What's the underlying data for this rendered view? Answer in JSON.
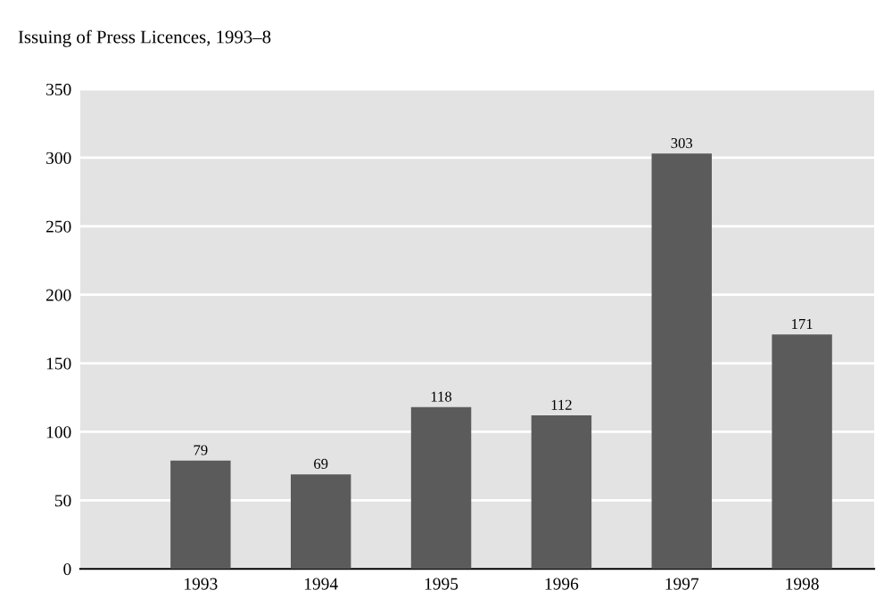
{
  "chart_data": {
    "type": "bar",
    "title": "Issuing of Press Licences, 1993–8",
    "categories": [
      "1993",
      "1994",
      "1995",
      "1996",
      "1997",
      "1998"
    ],
    "values": [
      79,
      69,
      118,
      112,
      303,
      171
    ],
    "color": "#5b5b5b",
    "ylim": [
      0,
      350
    ],
    "yticks": [
      0,
      50,
      100,
      150,
      200,
      250,
      300,
      350
    ],
    "grid": "y",
    "data_labels": true
  }
}
